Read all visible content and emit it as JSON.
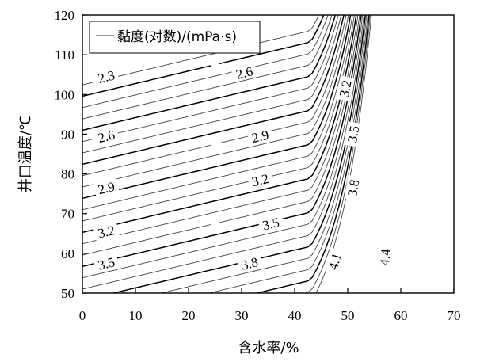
{
  "chart_data": {
    "type": "contour",
    "title": "",
    "xlabel": "含水率/%",
    "ylabel": "井口温度/℃",
    "xlim": [
      0,
      70
    ],
    "ylim": [
      50,
      120
    ],
    "xticks": [
      "0",
      "10",
      "20",
      "30",
      "40",
      "50",
      "60",
      "70"
    ],
    "yticks": [
      "50",
      "60",
      "70",
      "80",
      "90",
      "100",
      "110",
      "120"
    ],
    "legend": {
      "label": "黏度(对数)/(mPa·s)",
      "position": "top-left"
    },
    "grid": false,
    "contour_levels": {
      "labeled": [
        2.3,
        2.6,
        2.9,
        3.2,
        3.5,
        3.8,
        4.1,
        4.4
      ],
      "labeled_text": [
        "2.3",
        "2.6",
        "2.9",
        "3.2",
        "3.5",
        "3.8",
        "4.1",
        "4.4"
      ],
      "step": 0.1,
      "min": 2.2,
      "max": 4.6
    },
    "labels": [
      {
        "text": "2.3",
        "x": 4.5,
        "y": 104.5
      },
      {
        "text": "2.6",
        "x": 4.5,
        "y": 89.5
      },
      {
        "text": "2.9",
        "x": 4.5,
        "y": 76.5
      },
      {
        "text": "3.2",
        "x": 4.5,
        "y": 65.5
      },
      {
        "text": "3.5",
        "x": 4.5,
        "y": 57.5
      },
      {
        "text": "2.6",
        "x": 30.5,
        "y": 105.5
      },
      {
        "text": "2.9",
        "x": 33.5,
        "y": 89.5
      },
      {
        "text": "3.2",
        "x": 33.5,
        "y": 78.5
      },
      {
        "text": "3.5",
        "x": 35.5,
        "y": 67.5
      },
      {
        "text": "3.8",
        "x": 31.5,
        "y": 57.5
      },
      {
        "text": "3.2",
        "x": 49.5,
        "y": 101.5
      },
      {
        "text": "3.5",
        "x": 51.0,
        "y": 90.0
      },
      {
        "text": "3.8",
        "x": 51.0,
        "y": 76.5
      },
      {
        "text": "4.1",
        "x": 47.5,
        "y": 58.0
      },
      {
        "text": "4.4",
        "x": 57.0,
        "y": 59.0
      }
    ]
  }
}
